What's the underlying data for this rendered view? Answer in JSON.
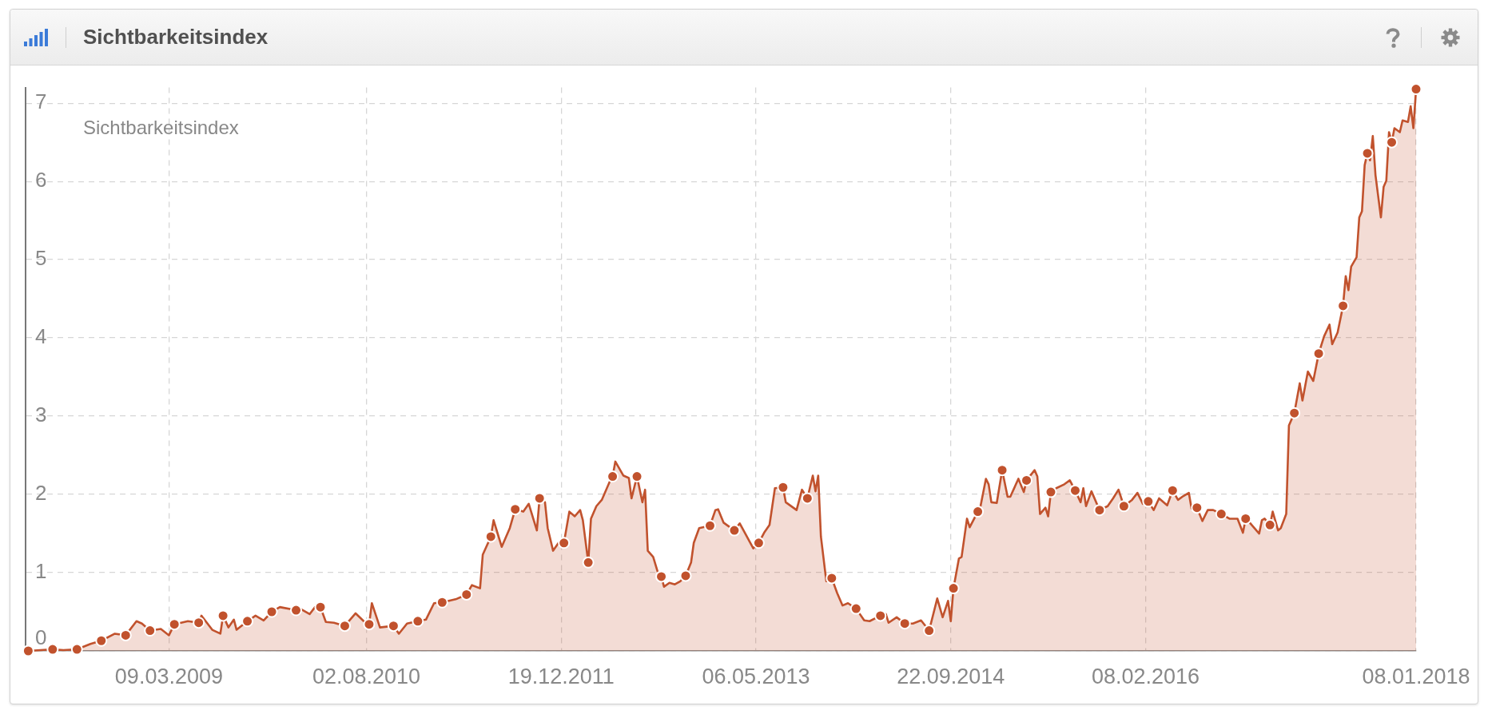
{
  "chart_data": {
    "type": "area",
    "title": "Sichtbarkeitsindex",
    "legend_title": "Sichtbarkeitsindex",
    "xlim": [
      "2008-03-03",
      "2018-01-08"
    ],
    "xticks": [
      {
        "value": "2009-03-09",
        "label": "09.03.2009"
      },
      {
        "value": "2010-08-02",
        "label": "02.08.2010"
      },
      {
        "value": "2011-12-19",
        "label": "19.12.2011"
      },
      {
        "value": "2013-05-06",
        "label": "06.05.2013"
      },
      {
        "value": "2014-09-22",
        "label": "22.09.2014"
      },
      {
        "value": "2016-02-08",
        "label": "08.02.2016"
      },
      {
        "value": "2018-01-08",
        "label": "08.01.2018"
      }
    ],
    "ylim": [
      0,
      7.2
    ],
    "yticks": [
      0,
      1,
      2,
      3,
      4,
      5,
      6,
      7
    ],
    "grid": true,
    "series": [
      {
        "type": "area",
        "color": "#c1522d",
        "marker": "none",
        "x": [
          "2008-03-10",
          "2008-05-12",
          "2008-06-09",
          "2008-07-14",
          "2008-08-18",
          "2008-09-15",
          "2008-10-20",
          "2008-11-17",
          "2008-12-15",
          "2008-12-29",
          "2009-01-19",
          "2009-02-16",
          "2009-03-09",
          "2009-03-23",
          "2009-04-27",
          "2009-05-25",
          "2009-06-01",
          "2009-06-29",
          "2009-07-20",
          "2009-07-27",
          "2009-08-10",
          "2009-08-24",
          "2009-08-31",
          "2009-09-28",
          "2009-10-19",
          "2009-11-09",
          "2009-11-30",
          "2009-12-21",
          "2010-02-01",
          "2010-02-15",
          "2010-03-08",
          "2010-03-22",
          "2010-04-05",
          "2010-04-19",
          "2010-05-10",
          "2010-06-07",
          "2010-07-05",
          "2010-07-26",
          "2010-08-09",
          "2010-08-16",
          "2010-09-06",
          "2010-10-11",
          "2010-10-25",
          "2010-11-15",
          "2010-12-13",
          "2011-01-03",
          "2011-01-24",
          "2011-02-14",
          "2011-03-21",
          "2011-04-18",
          "2011-05-02",
          "2011-05-23",
          "2011-05-30",
          "2011-06-20",
          "2011-06-27",
          "2011-07-18",
          "2011-08-08",
          "2011-08-22",
          "2011-09-12",
          "2011-09-26",
          "2011-10-17",
          "2011-10-24",
          "2011-11-07",
          "2011-11-14",
          "2011-11-28",
          "2011-12-12",
          "2011-12-26",
          "2012-01-09",
          "2012-01-23",
          "2012-02-06",
          "2012-02-13",
          "2012-02-27",
          "2012-03-05",
          "2012-03-19",
          "2012-04-02",
          "2012-04-23",
          "2012-04-30",
          "2012-05-07",
          "2012-05-28",
          "2012-06-11",
          "2012-06-18",
          "2012-07-02",
          "2012-07-16",
          "2012-07-23",
          "2012-07-30",
          "2012-08-13",
          "2012-08-27",
          "2012-09-03",
          "2012-09-10",
          "2012-09-24",
          "2012-10-08",
          "2012-10-22",
          "2012-11-05",
          "2012-11-19",
          "2012-11-26",
          "2012-12-10",
          "2013-01-07",
          "2013-01-21",
          "2013-01-28",
          "2013-02-11",
          "2013-03-11",
          "2013-03-25",
          "2013-04-29",
          "2013-05-13",
          "2013-05-27",
          "2013-06-10",
          "2013-06-24",
          "2013-07-15",
          "2013-07-22",
          "2013-08-19",
          "2013-09-02",
          "2013-09-16",
          "2013-09-30",
          "2013-10-07",
          "2013-10-14",
          "2013-10-21",
          "2013-11-04",
          "2013-11-18",
          "2013-12-02",
          "2013-12-16",
          "2013-12-30",
          "2014-01-20",
          "2014-02-10",
          "2014-02-24",
          "2014-03-24",
          "2014-04-07",
          "2014-04-14",
          "2014-05-05",
          "2014-05-26",
          "2014-06-16",
          "2014-07-07",
          "2014-07-28",
          "2014-08-18",
          "2014-09-01",
          "2014-09-15",
          "2014-09-22",
          "2014-09-29",
          "2014-10-13",
          "2014-10-20",
          "2014-11-03",
          "2014-11-10",
          "2014-12-01",
          "2014-12-08",
          "2014-12-22",
          "2014-12-29",
          "2015-01-05",
          "2015-01-19",
          "2015-02-02",
          "2015-02-16",
          "2015-02-23",
          "2015-03-16",
          "2015-03-30",
          "2015-04-06",
          "2015-04-27",
          "2015-05-04",
          "2015-05-11",
          "2015-05-25",
          "2015-06-01",
          "2015-06-08",
          "2015-06-22",
          "2015-07-13",
          "2015-07-27",
          "2015-08-10",
          "2015-08-24",
          "2015-08-31",
          "2015-09-07",
          "2015-09-21",
          "2015-10-12",
          "2015-11-02",
          "2015-11-16",
          "2015-11-30",
          "2015-12-14",
          "2016-01-04",
          "2016-01-18",
          "2016-02-01",
          "2016-02-15",
          "2016-02-29",
          "2016-03-14",
          "2016-04-04",
          "2016-04-18",
          "2016-05-02",
          "2016-05-16",
          "2016-05-30",
          "2016-06-06",
          "2016-06-20",
          "2016-07-04",
          "2016-07-18",
          "2016-08-01",
          "2016-08-22",
          "2016-09-12",
          "2016-10-03",
          "2016-10-17",
          "2016-10-24",
          "2016-11-07",
          "2016-11-28",
          "2016-12-05",
          "2016-12-12",
          "2016-12-26",
          "2017-01-02",
          "2017-01-16",
          "2017-01-23",
          "2017-02-06",
          "2017-02-13",
          "2017-02-27",
          "2017-03-13",
          "2017-03-20",
          "2017-04-03",
          "2017-04-17",
          "2017-05-01",
          "2017-05-15",
          "2017-05-29",
          "2017-06-05",
          "2017-06-19",
          "2017-07-03",
          "2017-07-10",
          "2017-07-17",
          "2017-07-24",
          "2017-08-07",
          "2017-08-14",
          "2017-08-21",
          "2017-08-28",
          "2017-09-04",
          "2017-09-11",
          "2017-09-18",
          "2017-09-25",
          "2017-10-09",
          "2017-10-16",
          "2017-10-23",
          "2017-10-30",
          "2017-11-06",
          "2017-11-13",
          "2017-11-27",
          "2017-12-04",
          "2017-12-18",
          "2017-12-25",
          "2018-01-01",
          "2018-01-08"
        ],
        "values": [
          0,
          0.02,
          0.01,
          0.02,
          0.09,
          0.13,
          0.22,
          0.2,
          0.38,
          0.35,
          0.26,
          0.28,
          0.2,
          0.34,
          0.38,
          0.36,
          0.45,
          0.27,
          0.22,
          0.45,
          0.3,
          0.4,
          0.27,
          0.38,
          0.45,
          0.39,
          0.5,
          0.56,
          0.52,
          0.53,
          0.47,
          0.56,
          0.56,
          0.37,
          0.36,
          0.32,
          0.48,
          0.38,
          0.34,
          0.61,
          0.3,
          0.32,
          0.22,
          0.35,
          0.38,
          0.4,
          0.61,
          0.62,
          0.66,
          0.72,
          0.84,
          0.8,
          1.23,
          1.46,
          1.67,
          1.33,
          1.57,
          1.81,
          1.78,
          1.88,
          1.54,
          1.95,
          1.9,
          1.57,
          1.28,
          1.38,
          1.38,
          1.78,
          1.72,
          1.8,
          1.67,
          1.13,
          1.69,
          1.85,
          1.93,
          2.17,
          2.23,
          2.42,
          2.24,
          2.21,
          1.95,
          2.23,
          1.9,
          2.06,
          1.28,
          1.2,
          0.97,
          0.95,
          0.82,
          0.87,
          0.85,
          0.89,
          0.96,
          1.13,
          1.38,
          1.57,
          1.6,
          1.8,
          1.81,
          1.64,
          1.54,
          1.63,
          1.31,
          1.38,
          1.51,
          1.61,
          2.08,
          2.09,
          1.9,
          1.8,
          2.06,
          1.95,
          2.24,
          2.04,
          2.24,
          1.46,
          0.89,
          0.93,
          0.74,
          0.58,
          0.61,
          0.54,
          0.39,
          0.38,
          0.45,
          0.47,
          0.36,
          0.43,
          0.35,
          0.35,
          0.39,
          0.26,
          0.67,
          0.43,
          0.64,
          0.38,
          0.8,
          1.18,
          1.2,
          1.69,
          1.58,
          1.78,
          1.85,
          2.2,
          2.13,
          1.9,
          1.89,
          2.31,
          1.97,
          1.97,
          2.2,
          2.03,
          2.18,
          2.31,
          2.23,
          1.75,
          1.83,
          1.72,
          2.03,
          2.08,
          2.13,
          2.18,
          2.05,
          1.9,
          2.08,
          1.85,
          2.04,
          1.8,
          1.85,
          1.95,
          2.06,
          1.85,
          1.93,
          2.02,
          1.88,
          1.91,
          1.8,
          1.95,
          1.86,
          2.05,
          1.93,
          1.98,
          2.02,
          1.82,
          1.83,
          1.66,
          1.8,
          1.8,
          1.75,
          1.69,
          1.69,
          1.51,
          1.69,
          1.62,
          1.5,
          1.67,
          1.69,
          1.61,
          1.78,
          1.54,
          1.57,
          1.75,
          2.88,
          3.04,
          3.42,
          3.2,
          3.57,
          3.45,
          3.8,
          4.02,
          4.17,
          3.92,
          4.07,
          4.41,
          4.79,
          4.61,
          4.91,
          5.03,
          5.54,
          5.62,
          6.21,
          6.36,
          6.27,
          6.58,
          6.08,
          5.54,
          5.93,
          6.01,
          6.63,
          6.5,
          6.68,
          6.63,
          6.78,
          6.76,
          6.96,
          6.68,
          7.18
        ]
      },
      {
        "type": "scatter",
        "color": "#c1522d",
        "marker": "circle",
        "x": [
          "2008-03-10",
          "2008-05-12",
          "2008-07-14",
          "2008-09-15",
          "2008-11-17",
          "2009-01-19",
          "2009-03-23",
          "2009-05-25",
          "2009-07-27",
          "2009-09-28",
          "2009-11-30",
          "2010-02-01",
          "2010-04-05",
          "2010-06-07",
          "2010-08-09",
          "2010-10-11",
          "2010-12-13",
          "2011-02-14",
          "2011-04-18",
          "2011-06-20",
          "2011-08-22",
          "2011-10-24",
          "2011-12-26",
          "2012-02-27",
          "2012-04-30",
          "2012-07-02",
          "2012-09-03",
          "2012-11-05",
          "2013-01-07",
          "2013-03-11",
          "2013-05-13",
          "2013-07-15",
          "2013-09-16",
          "2013-11-18",
          "2014-01-20",
          "2014-03-24",
          "2014-05-26",
          "2014-07-28",
          "2014-09-29",
          "2014-12-01",
          "2015-02-02",
          "2015-04-06",
          "2015-06-08",
          "2015-08-10",
          "2015-10-12",
          "2015-12-14",
          "2016-02-15",
          "2016-04-18",
          "2016-06-20",
          "2016-08-22",
          "2016-10-24",
          "2016-12-26",
          "2017-02-27",
          "2017-05-01",
          "2017-07-03",
          "2017-09-04",
          "2017-11-06",
          "2018-01-08"
        ],
        "values": [
          0,
          0.02,
          0.02,
          0.13,
          0.2,
          0.26,
          0.34,
          0.36,
          0.45,
          0.38,
          0.5,
          0.52,
          0.56,
          0.32,
          0.34,
          0.32,
          0.38,
          0.62,
          0.72,
          1.46,
          1.81,
          1.95,
          1.38,
          1.13,
          2.23,
          2.23,
          0.95,
          0.96,
          1.6,
          1.54,
          1.38,
          2.09,
          1.95,
          0.93,
          0.54,
          0.45,
          0.35,
          0.26,
          0.8,
          1.78,
          2.31,
          2.18,
          2.03,
          2.05,
          1.8,
          1.85,
          1.91,
          2.05,
          1.83,
          1.75,
          1.69,
          1.61,
          3.04,
          3.8,
          4.41,
          6.36,
          6.5,
          7.18
        ]
      }
    ]
  }
}
